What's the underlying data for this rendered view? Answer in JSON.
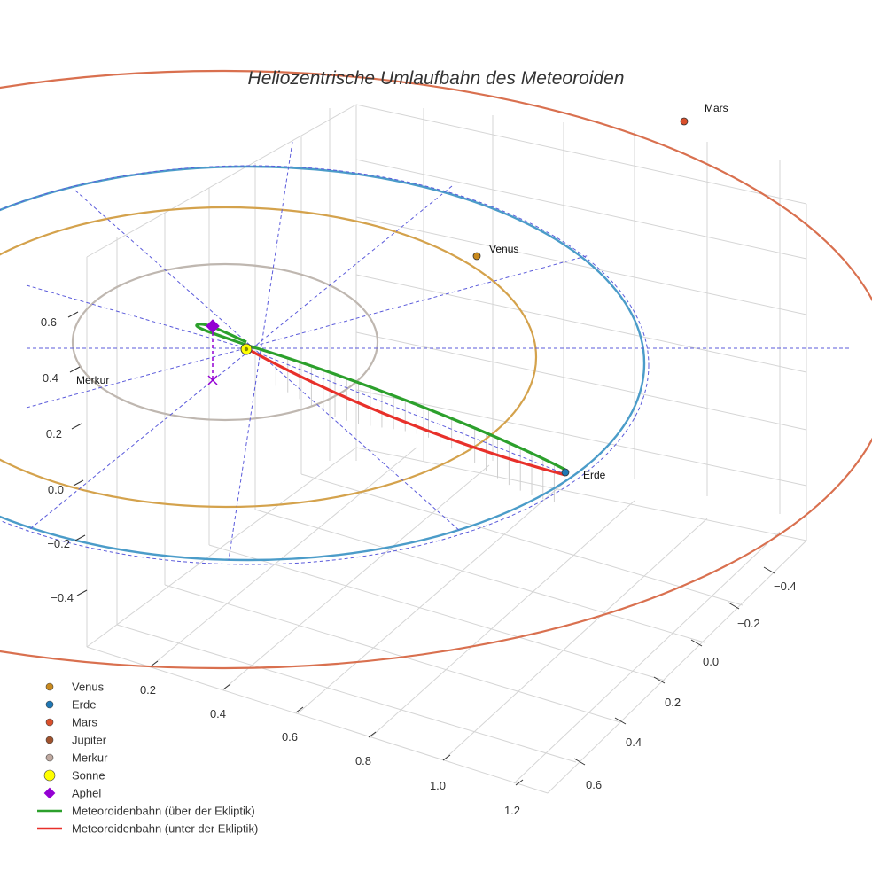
{
  "chart_data": {
    "type": "line",
    "title": "Heliozentrische Umlaufbahn des Meteoroiden",
    "axes": {
      "x_ticks": [
        "0.2",
        "0.4",
        "0.6",
        "0.8",
        "1.0",
        "1.2"
      ],
      "y_ticks": [
        "−0.4",
        "−0.2",
        "0.0",
        "0.2",
        "0.4",
        "0.6"
      ],
      "z_ticks": [
        "0.6",
        "0.4",
        "0.2",
        "0.0",
        "−0.2",
        "−0.4"
      ]
    },
    "planet_labels": {
      "mars": "Mars",
      "venus": "Venus",
      "merkur": "Merkur",
      "erde": "Erde"
    },
    "legend": [
      {
        "label": "Venus",
        "symbol": "dot",
        "color": "#c98a1e"
      },
      {
        "label": "Erde",
        "symbol": "dot",
        "color": "#1f77b4"
      },
      {
        "label": "Mars",
        "symbol": "dot",
        "color": "#d94f2b"
      },
      {
        "label": "Jupiter",
        "symbol": "dot",
        "color": "#a0522d"
      },
      {
        "label": "Merkur",
        "symbol": "dot",
        "color": "#bfa9a0"
      },
      {
        "label": "Sonne",
        "symbol": "big-dot",
        "color": "#ffff00"
      },
      {
        "label": "Aphel",
        "symbol": "diamond",
        "color": "#9400d3"
      },
      {
        "label": "Meteoroidenbahn (über der Ekliptik)",
        "symbol": "line",
        "color": "#2ca02c"
      },
      {
        "label": "Meteoroidenbahn (unter der Ekliptik)",
        "symbol": "line",
        "color": "#e8302a"
      }
    ],
    "series": [
      {
        "name": "Meteoroidenbahn (über der Ekliptik)",
        "color": "#2ca02c"
      },
      {
        "name": "Meteoroidenbahn (unter der Ekliptik)",
        "color": "#e8302a"
      }
    ],
    "orbit_colors": {
      "merkur": "#bfb7b0",
      "venus": "#d4a24c",
      "erde": "#4b9cc9",
      "mars": "#d9704f",
      "projection": "#5b5bdb"
    }
  }
}
